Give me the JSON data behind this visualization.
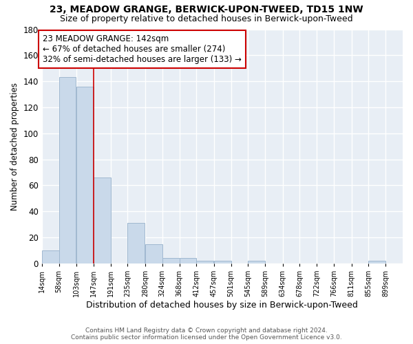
{
  "title": "23, MEADOW GRANGE, BERWICK-UPON-TWEED, TD15 1NW",
  "subtitle": "Size of property relative to detached houses in Berwick-upon-Tweed",
  "xlabel": "Distribution of detached houses by size in Berwick-upon-Tweed",
  "ylabel": "Number of detached properties",
  "footer1": "Contains HM Land Registry data © Crown copyright and database right 2024.",
  "footer2": "Contains public sector information licensed under the Open Government Licence v3.0.",
  "bin_edges": [
    14,
    58,
    103,
    147,
    191,
    235,
    280,
    324,
    368,
    412,
    457,
    501,
    545,
    589,
    634,
    678,
    722,
    766,
    811,
    855,
    899,
    943
  ],
  "bar_heights": [
    10,
    143,
    136,
    66,
    0,
    31,
    15,
    4,
    4,
    2,
    2,
    0,
    2,
    0,
    0,
    0,
    0,
    0,
    0,
    2,
    0,
    0
  ],
  "bar_color": "#c9d9ea",
  "bar_edge_color": "#a0b8d0",
  "plot_bg_color": "#e8eef5",
  "fig_bg_color": "#ffffff",
  "grid_color": "#ffffff",
  "vline_x": 147,
  "vline_color": "#cc0000",
  "ylim": [
    0,
    180
  ],
  "yticks": [
    0,
    20,
    40,
    60,
    80,
    100,
    120,
    140,
    160,
    180
  ],
  "annotation_text": "23 MEADOW GRANGE: 142sqm\n← 67% of detached houses are smaller (274)\n32% of semi-detached houses are larger (133) →",
  "annotation_box_color": "#ffffff",
  "annotation_box_edge_color": "#cc0000",
  "title_fontsize": 10,
  "subtitle_fontsize": 9,
  "tick_label_fontsize": 7,
  "ylabel_fontsize": 8.5,
  "xlabel_fontsize": 9,
  "annotation_fontsize": 8.5
}
